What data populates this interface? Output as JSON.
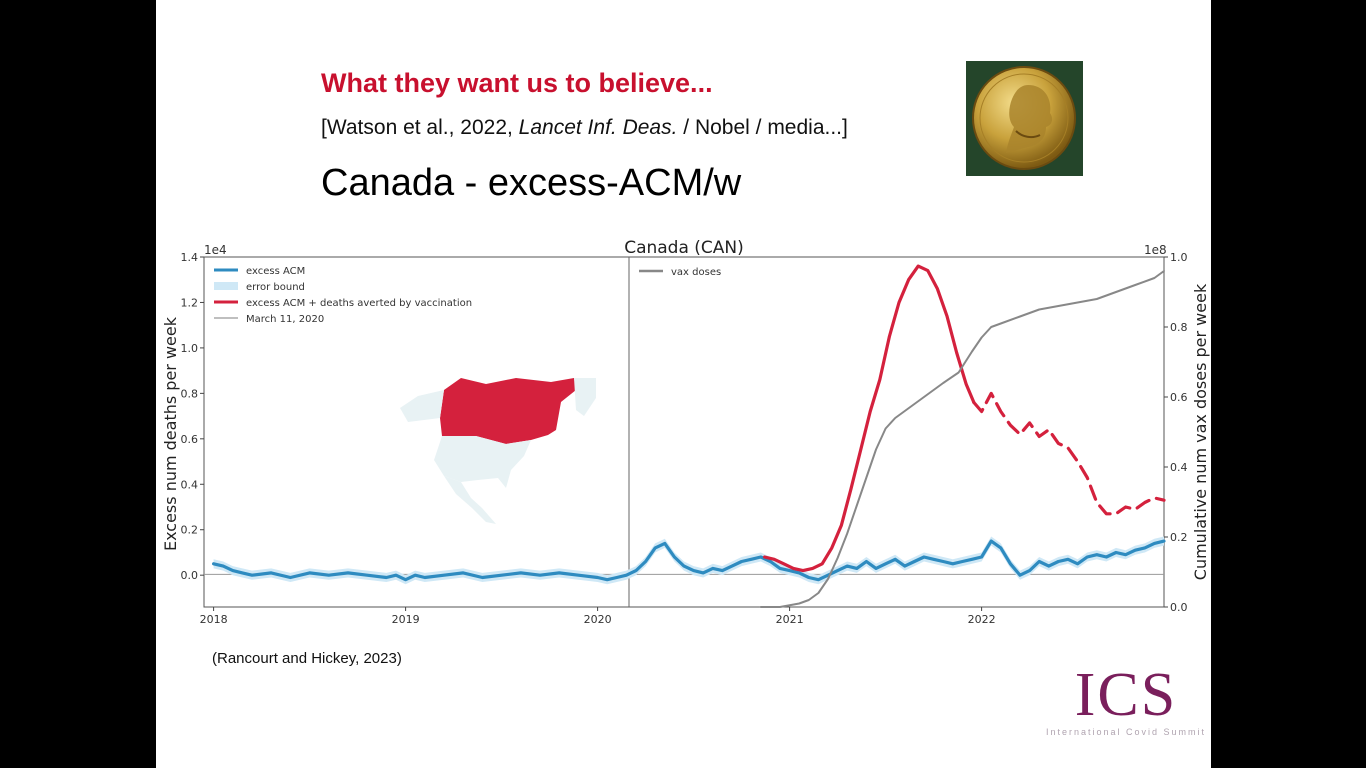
{
  "slide": {
    "headline": "What they want us to believe...",
    "citation_pre": "[Watson et al., 2022, ",
    "citation_journal": "Lancet Inf. Deas.",
    "citation_post": " / Nobel / media...]",
    "subtitle": "Canada  -  excess-ACM/w",
    "source": "(Rancourt and Hickey, 2023)"
  },
  "logo": {
    "letters": "ICS",
    "subtitle": "International Covid Summit"
  },
  "chart_data": {
    "type": "line",
    "title": "Canada (CAN)",
    "ylabel": "Excess num deaths per week",
    "y2label": "Cumulative num vax doses per week",
    "y_exponent_label": "1e4",
    "y2_exponent_label": "1e8",
    "xlim": [
      2017.95,
      2022.95
    ],
    "ylim": [
      -0.14,
      1.4
    ],
    "y2lim": [
      0,
      1.0
    ],
    "yticks": [
      0.0,
      0.2,
      0.4,
      0.6,
      0.8,
      1.0,
      1.2,
      1.4
    ],
    "y2ticks": [
      0.0,
      0.2,
      0.4,
      0.6,
      0.8,
      1.0
    ],
    "xticks": [
      2018,
      2019,
      2020,
      2021,
      2022
    ],
    "grid": false,
    "legend": [
      {
        "label": "excess ACM",
        "color": "#2e8bc0"
      },
      {
        "label": "error bound",
        "color": "#cfe8f6"
      },
      {
        "label": "excess ACM + deaths averted by vaccination",
        "color": "#d4213d"
      },
      {
        "label": "March 11, 2020",
        "color": "#999999"
      },
      {
        "label": "vax doses",
        "color": "#888888"
      }
    ],
    "vline_x": 2020.19,
    "series": [
      {
        "name": "excess ACM",
        "axis": "left",
        "color": "#2e8bc0",
        "x": [
          2018.0,
          2018.05,
          2018.1,
          2018.15,
          2018.2,
          2018.3,
          2018.4,
          2018.5,
          2018.6,
          2018.7,
          2018.8,
          2018.9,
          2018.95,
          2019.0,
          2019.05,
          2019.1,
          2019.2,
          2019.3,
          2019.4,
          2019.5,
          2019.6,
          2019.7,
          2019.8,
          2019.9,
          2020.0,
          2020.05,
          2020.1,
          2020.15,
          2020.2,
          2020.25,
          2020.3,
          2020.35,
          2020.4,
          2020.45,
          2020.5,
          2020.55,
          2020.6,
          2020.65,
          2020.7,
          2020.75,
          2020.8,
          2020.85,
          2020.9,
          2020.95,
          2021.0,
          2021.05,
          2021.1,
          2021.15,
          2021.2,
          2021.25,
          2021.3,
          2021.35,
          2021.4,
          2021.45,
          2021.5,
          2021.55,
          2021.6,
          2021.65,
          2021.7,
          2021.75,
          2021.8,
          2021.85,
          2021.9,
          2021.95,
          2022.0,
          2022.05,
          2022.1,
          2022.15,
          2022.2,
          2022.25,
          2022.3,
          2022.35,
          2022.4,
          2022.45,
          2022.5,
          2022.55,
          2022.6,
          2022.65,
          2022.7,
          2022.75,
          2022.8,
          2022.85,
          2022.9,
          2022.95
        ],
        "y": [
          0.05,
          0.04,
          0.02,
          0.01,
          0.0,
          0.01,
          -0.01,
          0.01,
          0.0,
          0.01,
          0.0,
          -0.01,
          0.0,
          -0.02,
          0.0,
          -0.01,
          0.0,
          0.01,
          -0.01,
          0.0,
          0.01,
          0.0,
          0.01,
          0.0,
          -0.01,
          -0.02,
          -0.01,
          0.0,
          0.02,
          0.06,
          0.12,
          0.14,
          0.08,
          0.04,
          0.02,
          0.01,
          0.03,
          0.02,
          0.04,
          0.06,
          0.07,
          0.08,
          0.06,
          0.03,
          0.02,
          0.01,
          -0.01,
          -0.02,
          0.0,
          0.02,
          0.04,
          0.03,
          0.06,
          0.03,
          0.05,
          0.07,
          0.04,
          0.06,
          0.08,
          0.07,
          0.06,
          0.05,
          0.06,
          0.07,
          0.08,
          0.15,
          0.12,
          0.05,
          0.0,
          0.02,
          0.06,
          0.04,
          0.06,
          0.07,
          0.05,
          0.08,
          0.09,
          0.08,
          0.1,
          0.09,
          0.11,
          0.12,
          0.14,
          0.15
        ]
      },
      {
        "name": "excess ACM + deaths averted by vaccination",
        "axis": "left",
        "color": "#d4213d",
        "x": [
          2020.87,
          2020.92,
          2020.97,
          2021.02,
          2021.07,
          2021.12,
          2021.17,
          2021.22,
          2021.27,
          2021.32,
          2021.37,
          2021.42,
          2021.47,
          2021.52,
          2021.57,
          2021.62,
          2021.67,
          2021.72,
          2021.77,
          2021.82,
          2021.87,
          2021.92,
          2021.96
        ],
        "y": [
          0.08,
          0.07,
          0.05,
          0.03,
          0.02,
          0.03,
          0.05,
          0.12,
          0.22,
          0.38,
          0.55,
          0.72,
          0.86,
          1.05,
          1.2,
          1.3,
          1.36,
          1.34,
          1.26,
          1.14,
          0.98,
          0.84,
          0.76
        ],
        "dash": false
      },
      {
        "name": "excess ACM + deaths averted by vaccination (projected)",
        "axis": "left",
        "color": "#d4213d",
        "x": [
          2021.96,
          2022.0,
          2022.05,
          2022.1,
          2022.15,
          2022.2,
          2022.25,
          2022.3,
          2022.35,
          2022.4,
          2022.45,
          2022.5,
          2022.55,
          2022.6,
          2022.65,
          2022.7,
          2022.75,
          2022.8,
          2022.85,
          2022.9,
          2022.95
        ],
        "y": [
          0.76,
          0.72,
          0.8,
          0.72,
          0.66,
          0.62,
          0.67,
          0.61,
          0.64,
          0.58,
          0.56,
          0.5,
          0.43,
          0.32,
          0.27,
          0.27,
          0.3,
          0.29,
          0.32,
          0.34,
          0.33
        ],
        "dash": true
      },
      {
        "name": "vax doses",
        "axis": "right",
        "color": "#888888",
        "x": [
          2020.85,
          2020.95,
          2021.05,
          2021.1,
          2021.15,
          2021.2,
          2021.25,
          2021.3,
          2021.35,
          2021.4,
          2021.45,
          2021.5,
          2021.55,
          2021.6,
          2021.7,
          2021.8,
          2021.88,
          2021.95,
          2022.0,
          2022.05,
          2022.1,
          2022.2,
          2022.3,
          2022.4,
          2022.5,
          2022.6,
          2022.7,
          2022.8,
          2022.9,
          2022.95
        ],
        "y": [
          0.0,
          0.0,
          0.01,
          0.02,
          0.04,
          0.08,
          0.14,
          0.21,
          0.29,
          0.37,
          0.45,
          0.51,
          0.54,
          0.56,
          0.6,
          0.64,
          0.67,
          0.73,
          0.77,
          0.8,
          0.81,
          0.83,
          0.85,
          0.86,
          0.87,
          0.88,
          0.9,
          0.92,
          0.94,
          0.96
        ]
      }
    ]
  }
}
